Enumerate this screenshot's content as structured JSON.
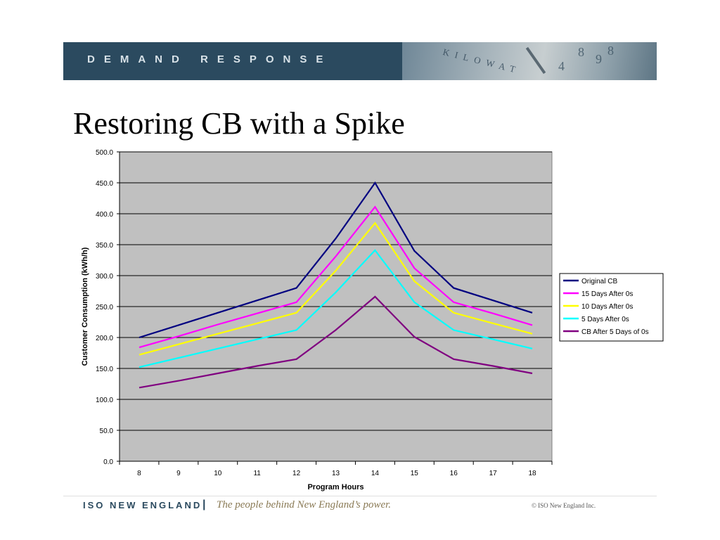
{
  "header": {
    "banner_text": "DEMAND RESPONSE",
    "banner_art_text": "KILOWAT",
    "banner_digits": [
      "8",
      "9",
      "4",
      "8"
    ]
  },
  "slide": {
    "title": "Restoring CB with a Spike"
  },
  "chart_data": {
    "type": "line",
    "title": "",
    "xlabel": "Program Hours",
    "ylabel": "Customer Consumption (kWh/h)",
    "categories": [
      "8",
      "9",
      "10",
      "11",
      "12",
      "13",
      "14",
      "15",
      "16",
      "17",
      "18"
    ],
    "ylim": [
      0,
      500
    ],
    "yticks": [
      "0.0",
      "50.0",
      "100.0",
      "150.0",
      "200.0",
      "250.0",
      "300.0",
      "350.0",
      "400.0",
      "450.0",
      "500.0"
    ],
    "grid": true,
    "plot_background": "#c0c0c0",
    "legend_position": "right",
    "series": [
      {
        "name": "Original CB",
        "color": "#000080",
        "values": [
          200,
          220,
          240,
          260,
          280,
          360,
          450,
          340,
          280,
          260,
          240
        ]
      },
      {
        "name": "15 Days After 0s",
        "color": "#ff00ff",
        "values": [
          184,
          202,
          221,
          239,
          257,
          331,
          411,
          312,
          257,
          239,
          220
        ]
      },
      {
        "name": "10 Days After 0s",
        "color": "#ffff00",
        "values": [
          172,
          189,
          206,
          223,
          240,
          308,
          385,
          291,
          240,
          223,
          206
        ]
      },
      {
        "name": "5 Days After 0s",
        "color": "#00ffff",
        "values": [
          152,
          167,
          182,
          197,
          212,
          273,
          341,
          257,
          212,
          197,
          182
        ]
      },
      {
        "name": "CB After 5 Days of 0s",
        "color": "#800080",
        "values": [
          119,
          130,
          142,
          154,
          165,
          212,
          266,
          201,
          165,
          154,
          142
        ]
      }
    ]
  },
  "footer": {
    "org": "ISO NEW ENGLAND",
    "separator": "|",
    "tagline": "The people behind New England’s power.",
    "copyright": "© ISO New England Inc."
  }
}
